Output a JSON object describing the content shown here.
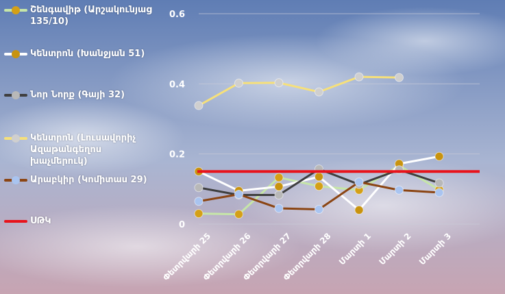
{
  "colors": {
    "sky_top": "#5f7db4",
    "sky_mid": "#a9b5d2",
    "sky_bottom": "#c7a4b2",
    "grid": "#c9cbd8",
    "text": "#ffffff"
  },
  "legend": [
    {
      "label": "Շենգավիթ (Արշակունյաց 135/10)",
      "line": "#c6e6a8",
      "dot": "#d4a017"
    },
    {
      "label": "Կենտրոն (Խանջյան 51)",
      "line": "#ffffff",
      "dot": "#c8930f"
    },
    {
      "label": "Նոր Նորք (Գայի 32)",
      "line": "#3f3f3f",
      "dot": "#b8b8b8"
    },
    {
      "label": "Կենտրոն (Լուսավորիչ Ազաթանգեղոս խաչմերուկ)",
      "line": "#f6e07a",
      "dot": "#cfcfcf"
    },
    {
      "label": "Արաբկիր (Կոմիտաս 29)",
      "line": "#8b4513",
      "dot": "#a9c4f0"
    },
    {
      "label": "ՍԹԿ",
      "line": "#e8131b",
      "dot": null
    }
  ],
  "chart_data": {
    "type": "line",
    "categories": [
      "Փետրվարի 25",
      "Փետրվարի 26",
      "Փետրվարի 27",
      "Փետրվարի 28",
      "Մարտի 1",
      "Մարտի 2",
      "Մարտի 3"
    ],
    "ylim": [
      0,
      0.6
    ],
    "yticks": [
      "0",
      "0.2",
      "0.4",
      "0.6"
    ],
    "grid": true,
    "legend_position": "left",
    "series": [
      {
        "name": "Շենգավիթ (Արշակունյաց 135/10)",
        "line_color": "#c6e6a8",
        "marker_color": "#d4a017",
        "values": [
          0.03,
          0.028,
          0.133,
          0.108,
          0.097,
          0.167,
          0.098
        ]
      },
      {
        "name": "Կենտրոն (Խանջյան 51)",
        "line_color": "#ffffff",
        "marker_color": "#c8930f",
        "values": [
          0.15,
          0.095,
          0.107,
          0.135,
          0.04,
          0.172,
          0.193
        ]
      },
      {
        "name": "Նոր Նորք (Գայի 32)",
        "line_color": "#3f3f3f",
        "marker_color": "#b8b8b8",
        "values": [
          0.104,
          0.083,
          0.083,
          0.157,
          0.113,
          0.155,
          0.117
        ]
      },
      {
        "name": "Կենտրոն (Լուսավորիչ Ազաթանգեղոս խաչմերուկ)",
        "line_color": "#f6e07a",
        "marker_color": "#cfcfcf",
        "values": [
          0.338,
          0.402,
          0.403,
          0.377,
          0.42,
          0.418,
          null
        ]
      },
      {
        "name": "Արաբկիր (Կոմիտաս 29)",
        "line_color": "#8b4513",
        "marker_color": "#a9c4f0",
        "values": [
          0.065,
          0.085,
          0.045,
          0.042,
          0.12,
          0.097,
          0.09
        ]
      }
    ],
    "reference_line": {
      "name": "ՍԹԿ",
      "value": 0.15,
      "color": "#e8131b"
    }
  }
}
